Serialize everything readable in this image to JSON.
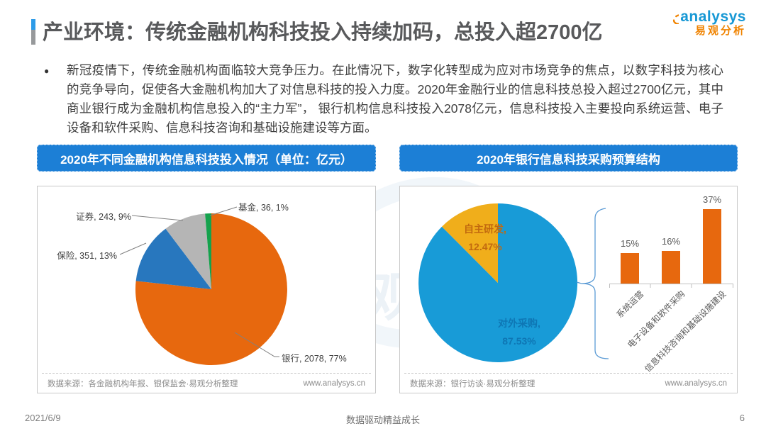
{
  "header": {
    "title": "产业环境：传统金融机构科技投入持续加码，总投入超2700亿",
    "logo": {
      "brand": "analysys",
      "brand_cn": "易观分析"
    }
  },
  "intro": {
    "bullet": "●",
    "text": "新冠疫情下，传统金融机构面临较大竞争压力。在此情况下，数字化转型成为应对市场竞争的焦点，以数字科技为核心的竞争导向，促使各大金融机构加大了对信息科技的投入力度。2020年金融行业的信息科技总投入超过2700亿元，其中商业银行成为金融机构信息投入的“主力军”， 银行机构信息科技投入2078亿元，信息科技投入主要投向系统运营、电子设备和软件采购、信息科技咨询和基础设施建设等方面。"
  },
  "chart_data": [
    {
      "type": "pie",
      "title": "2020年不同金融机构信息科技投入情况（单位：亿元）",
      "unit": "亿元",
      "slices": [
        {
          "label": "银行",
          "value": 2078,
          "pct": "77%",
          "display": "银行, 2078, 77%",
          "color": "#E7680E"
        },
        {
          "label": "保险",
          "value": 351,
          "pct": "13%",
          "display": "保险, 351, 13%",
          "color": "#2877BE"
        },
        {
          "label": "证券",
          "value": 243,
          "pct": "9%",
          "display": "证券, 243, 9%",
          "color": "#B5B5B5"
        },
        {
          "label": "基金",
          "value": 36,
          "pct": "1%",
          "display": "基金, 36, 1%",
          "color": "#15A24D"
        }
      ],
      "source": "数据来源：各金融机构年报、银保监会·易观分析整理",
      "site": "www.analysys.cn"
    },
    {
      "type": "pie",
      "title": "2020年银行信息科技采购预算结构",
      "slices": [
        {
          "label": "对外采购",
          "value": 87.53,
          "pct": "87.53%",
          "display": "对外采购,\n87.53%",
          "color": "#189BD7",
          "text_color": "#0E76B4"
        },
        {
          "label": "自主研发",
          "value": 12.47,
          "pct": "12.47%",
          "display": "自主研发,\n12.47%",
          "color": "#F0AE1B",
          "text_color": "#C2690F"
        }
      ],
      "bars": {
        "type": "bar",
        "categories": [
          "系统运营",
          "电子设备和软件采购",
          "信息科技咨询和基础设施建设"
        ],
        "values": [
          15,
          16,
          37
        ],
        "displays": [
          "15%",
          "16%",
          "37%"
        ],
        "color": "#E7680E"
      },
      "source": "数据来源：银行访谈·易观分析整理",
      "site": "www.analysys.cn"
    }
  ],
  "watermark": {
    "cn": "易观"
  },
  "footer": {
    "date": "2021/6/9",
    "slogan": "数据驱动精益成长",
    "page": "6"
  }
}
